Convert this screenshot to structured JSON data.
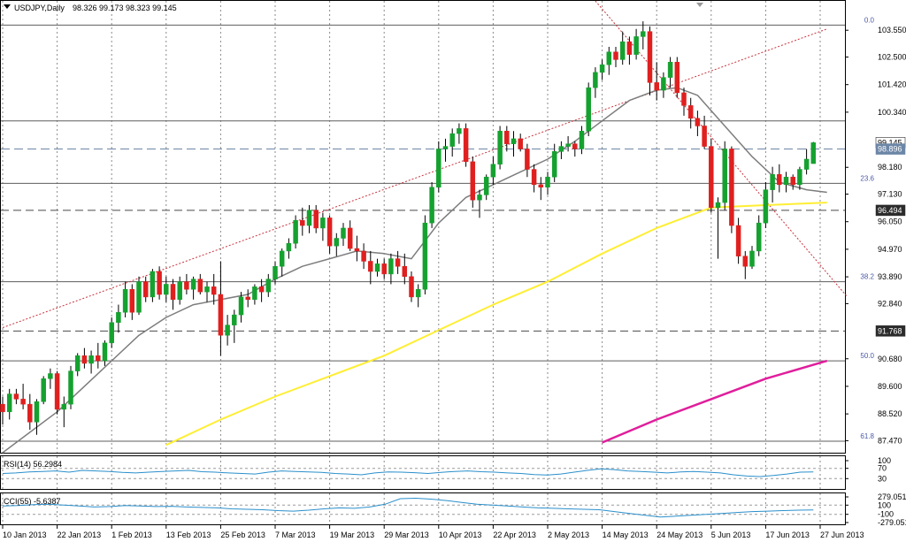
{
  "chart_data": {
    "type": "candlestick",
    "symbol_header": "USDJPY,Daily",
    "ohlc_header": "98.326 99.173 98.323 99.145",
    "price_axis_ticks": [
      "103.550",
      "102.500",
      "101.420",
      "100.340",
      "98.180",
      "97.130",
      "96.050",
      "94.970",
      "93.890",
      "92.840",
      "90.680",
      "89.600",
      "88.520",
      "87.470"
    ],
    "price_tags": [
      {
        "label": "99.145",
        "value": 99.145,
        "style": "current"
      },
      {
        "label": "98.896",
        "value": 98.896,
        "style": "blue"
      },
      {
        "label": "96.494",
        "value": 96.494,
        "style": "dark"
      },
      {
        "label": "91.768",
        "value": 91.768,
        "style": "dark"
      }
    ],
    "ylim": [
      87.0,
      104.7
    ],
    "date_labels": [
      {
        "label": "10 Jan 2013",
        "bar": 0
      },
      {
        "label": "22 Jan 2013",
        "bar": 8
      },
      {
        "label": "1 Feb 2013",
        "bar": 16
      },
      {
        "label": "13 Feb 2013",
        "bar": 24
      },
      {
        "label": "25 Feb 2013",
        "bar": 32
      },
      {
        "label": "7 Mar 2013",
        "bar": 40
      },
      {
        "label": "19 Mar 2013",
        "bar": 48
      },
      {
        "label": "29 Mar 2013",
        "bar": 56
      },
      {
        "label": "10 Apr 2013",
        "bar": 64
      },
      {
        "label": "22 Apr 2013",
        "bar": 72
      },
      {
        "label": "2 May 2013",
        "bar": 80
      },
      {
        "label": "14 May 2013",
        "bar": 88
      },
      {
        "label": "24 May 2013",
        "bar": 96
      },
      {
        "label": "5 Jun 2013",
        "bar": 104
      },
      {
        "label": "17 Jun 2013",
        "bar": 112
      },
      {
        "label": "27 Jun 2013",
        "bar": 120
      }
    ],
    "fib_levels": [
      {
        "label": "0.0",
        "value": 103.75
      },
      {
        "label": "23.6",
        "value": 97.55
      },
      {
        "label": "38.2",
        "value": 93.7
      },
      {
        "label": "50.0",
        "value": 90.6
      },
      {
        "label": "61.8",
        "value": 87.45
      }
    ],
    "horizontal_lines": [
      {
        "value": 103.75,
        "style": "solid"
      },
      {
        "value": 100.0,
        "style": "solid"
      },
      {
        "value": 98.896,
        "style": "dashed-blue"
      },
      {
        "value": 97.55,
        "style": "solid"
      },
      {
        "value": 96.494,
        "style": "dashed"
      },
      {
        "value": 93.7,
        "style": "solid"
      },
      {
        "value": 91.768,
        "style": "dashed"
      },
      {
        "value": 90.6,
        "style": "solid"
      },
      {
        "value": 87.45,
        "style": "solid"
      }
    ],
    "trendlines": [
      {
        "from": [
          0,
          91.9
        ],
        "to": [
          121,
          103.6
        ],
        "style": "dotted-red"
      },
      {
        "from": [
          87,
          104.7
        ],
        "to": [
          124,
          93.1
        ],
        "style": "dotted-red"
      }
    ],
    "candles": [
      [
        88.9,
        89.2,
        88.1,
        88.6
      ],
      [
        88.6,
        89.5,
        88.3,
        89.3
      ],
      [
        89.3,
        89.5,
        88.9,
        89.1
      ],
      [
        89.1,
        89.7,
        88.7,
        88.9
      ],
      [
        88.9,
        89.3,
        87.9,
        88.2
      ],
      [
        88.2,
        89.1,
        87.7,
        89.0
      ],
      [
        89.0,
        90.0,
        88.9,
        89.9
      ],
      [
        89.9,
        90.3,
        89.5,
        90.1
      ],
      [
        90.1,
        90.2,
        88.5,
        88.7
      ],
      [
        88.7,
        89.2,
        88.0,
        88.9
      ],
      [
        88.9,
        90.4,
        88.7,
        90.2
      ],
      [
        90.2,
        90.9,
        90.0,
        90.8
      ],
      [
        90.8,
        91.1,
        90.3,
        90.5
      ],
      [
        90.5,
        91.0,
        90.1,
        90.8
      ],
      [
        90.8,
        91.3,
        90.3,
        90.6
      ],
      [
        90.6,
        91.4,
        90.4,
        91.3
      ],
      [
        91.3,
        92.3,
        91.1,
        92.1
      ],
      [
        92.1,
        92.8,
        91.7,
        92.5
      ],
      [
        92.5,
        93.7,
        92.3,
        93.4
      ],
      [
        93.4,
        93.6,
        92.2,
        92.5
      ],
      [
        92.5,
        93.9,
        92.4,
        93.7
      ],
      [
        93.7,
        93.9,
        92.9,
        93.1
      ],
      [
        93.1,
        94.2,
        92.9,
        94.1
      ],
      [
        94.1,
        94.3,
        93.0,
        93.2
      ],
      [
        93.2,
        93.9,
        92.9,
        93.6
      ],
      [
        93.6,
        93.8,
        92.6,
        93.0
      ],
      [
        93.0,
        93.9,
        92.8,
        93.7
      ],
      [
        93.7,
        94.0,
        93.2,
        93.4
      ],
      [
        93.4,
        93.9,
        93.0,
        93.8
      ],
      [
        93.8,
        94.0,
        93.2,
        93.3
      ],
      [
        93.3,
        93.7,
        92.9,
        93.5
      ],
      [
        93.5,
        94.0,
        92.8,
        93.2
      ],
      [
        93.2,
        94.5,
        90.8,
        91.6
      ],
      [
        91.6,
        92.4,
        91.2,
        92.0
      ],
      [
        92.0,
        92.6,
        91.3,
        92.4
      ],
      [
        92.4,
        93.3,
        92.1,
        93.1
      ],
      [
        93.1,
        93.4,
        92.7,
        93.0
      ],
      [
        93.0,
        93.6,
        92.8,
        93.5
      ],
      [
        93.5,
        93.8,
        92.9,
        93.3
      ],
      [
        93.3,
        94.0,
        93.1,
        93.8
      ],
      [
        93.8,
        94.5,
        93.6,
        94.3
      ],
      [
        94.3,
        95.0,
        93.9,
        94.9
      ],
      [
        94.9,
        95.4,
        94.6,
        95.2
      ],
      [
        95.2,
        96.3,
        95.0,
        96.1
      ],
      [
        96.1,
        96.6,
        95.5,
        95.9
      ],
      [
        95.9,
        96.7,
        95.6,
        96.5
      ],
      [
        96.5,
        96.7,
        95.6,
        95.8
      ],
      [
        95.8,
        96.4,
        95.3,
        96.2
      ],
      [
        96.2,
        96.3,
        94.8,
        95.1
      ],
      [
        95.1,
        95.6,
        94.7,
        95.4
      ],
      [
        95.4,
        96.0,
        95.1,
        95.8
      ],
      [
        95.8,
        96.1,
        94.9,
        95.0
      ],
      [
        95.0,
        95.5,
        94.5,
        94.9
      ],
      [
        94.9,
        95.2,
        94.2,
        94.5
      ],
      [
        94.5,
        94.9,
        93.6,
        94.1
      ],
      [
        94.1,
        94.6,
        93.9,
        94.4
      ],
      [
        94.4,
        94.6,
        93.8,
        94.0
      ],
      [
        94.0,
        94.8,
        93.6,
        94.6
      ],
      [
        94.6,
        94.9,
        94.0,
        94.3
      ],
      [
        94.3,
        94.8,
        93.6,
        93.9
      ],
      [
        93.9,
        94.1,
        92.9,
        93.1
      ],
      [
        93.1,
        93.6,
        92.7,
        93.4
      ],
      [
        93.4,
        96.3,
        93.2,
        96.0
      ],
      [
        96.0,
        97.6,
        95.8,
        97.4
      ],
      [
        97.4,
        99.2,
        97.2,
        98.9
      ],
      [
        98.9,
        99.3,
        98.4,
        99.0
      ],
      [
        99.0,
        99.7,
        98.6,
        99.5
      ],
      [
        99.5,
        99.9,
        99.1,
        99.7
      ],
      [
        99.7,
        99.9,
        98.2,
        98.4
      ],
      [
        98.4,
        98.6,
        96.6,
        96.9
      ],
      [
        96.9,
        97.3,
        96.2,
        97.1
      ],
      [
        97.1,
        97.9,
        96.9,
        97.8
      ],
      [
        97.8,
        98.6,
        97.5,
        98.3
      ],
      [
        98.3,
        99.8,
        98.1,
        99.6
      ],
      [
        99.6,
        99.8,
        98.8,
        99.1
      ],
      [
        99.1,
        99.6,
        98.6,
        99.3
      ],
      [
        99.3,
        99.5,
        98.8,
        98.9
      ],
      [
        98.9,
        99.1,
        97.8,
        98.1
      ],
      [
        98.1,
        98.3,
        97.2,
        97.5
      ],
      [
        97.5,
        97.8,
        96.9,
        97.4
      ],
      [
        97.4,
        98.0,
        97.1,
        97.8
      ],
      [
        97.8,
        99.1,
        97.6,
        98.8
      ],
      [
        98.8,
        99.2,
        98.5,
        99.0
      ],
      [
        99.0,
        99.4,
        98.8,
        99.1
      ],
      [
        99.1,
        99.2,
        98.6,
        98.9
      ],
      [
        98.9,
        99.8,
        98.7,
        99.6
      ],
      [
        99.6,
        101.5,
        99.4,
        101.3
      ],
      [
        101.3,
        102.1,
        100.9,
        101.9
      ],
      [
        101.9,
        102.4,
        101.6,
        102.2
      ],
      [
        102.2,
        102.9,
        101.8,
        102.7
      ],
      [
        102.7,
        102.9,
        102.1,
        102.4
      ],
      [
        102.4,
        103.5,
        102.2,
        103.1
      ],
      [
        103.1,
        103.3,
        102.2,
        102.6
      ],
      [
        102.6,
        103.6,
        102.4,
        103.3
      ],
      [
        103.3,
        103.9,
        102.8,
        103.5
      ],
      [
        103.5,
        103.7,
        101.0,
        101.5
      ],
      [
        101.5,
        102.3,
        100.8,
        101.2
      ],
      [
        101.2,
        101.9,
        100.9,
        101.7
      ],
      [
        101.7,
        102.5,
        101.3,
        102.3
      ],
      [
        102.3,
        102.5,
        100.9,
        101.1
      ],
      [
        101.1,
        101.3,
        100.2,
        100.6
      ],
      [
        100.6,
        100.9,
        99.7,
        100.1
      ],
      [
        100.1,
        100.4,
        99.4,
        99.8
      ],
      [
        99.8,
        100.2,
        98.9,
        99.0
      ],
      [
        99.0,
        99.3,
        96.4,
        96.6
      ],
      [
        96.6,
        97.0,
        94.6,
        96.8
      ],
      [
        96.8,
        99.2,
        96.5,
        98.9
      ],
      [
        98.9,
        99.0,
        95.6,
        95.9
      ],
      [
        95.9,
        96.2,
        94.4,
        94.7
      ],
      [
        94.7,
        94.9,
        93.8,
        94.3
      ],
      [
        94.3,
        95.1,
        94.2,
        94.9
      ],
      [
        94.9,
        96.3,
        94.7,
        96.0
      ],
      [
        96.0,
        97.6,
        95.8,
        97.3
      ],
      [
        97.3,
        98.2,
        96.8,
        97.9
      ],
      [
        97.9,
        98.3,
        97.2,
        97.5
      ],
      [
        97.5,
        98.0,
        97.2,
        97.8
      ],
      [
        97.8,
        97.9,
        97.3,
        97.5
      ],
      [
        97.5,
        98.2,
        97.3,
        98.1
      ],
      [
        98.1,
        98.9,
        97.9,
        98.5
      ],
      [
        98.326,
        99.173,
        98.323,
        99.145
      ]
    ],
    "ma_short": [
      [
        0,
        87.0
      ],
      [
        4,
        87.8
      ],
      [
        8,
        88.6
      ],
      [
        12,
        89.6
      ],
      [
        16,
        90.6
      ],
      [
        20,
        91.6
      ],
      [
        24,
        92.3
      ],
      [
        28,
        92.8
      ],
      [
        32,
        93.0
      ],
      [
        36,
        93.2
      ],
      [
        40,
        93.8
      ],
      [
        44,
        94.3
      ],
      [
        48,
        94.6
      ],
      [
        52,
        94.9
      ],
      [
        56,
        94.8
      ],
      [
        60,
        94.6
      ],
      [
        64,
        96.0
      ],
      [
        68,
        97.0
      ],
      [
        72,
        97.5
      ],
      [
        76,
        98.0
      ],
      [
        80,
        98.5
      ],
      [
        84,
        99.2
      ],
      [
        88,
        100.0
      ],
      [
        92,
        100.8
      ],
      [
        96,
        101.2
      ],
      [
        99,
        101.3
      ],
      [
        102,
        101.0
      ],
      [
        106,
        99.8
      ],
      [
        110,
        98.6
      ],
      [
        114,
        97.6
      ],
      [
        118,
        97.3
      ],
      [
        121,
        97.2
      ]
    ],
    "ma_mid": [
      [
        24,
        87.3
      ],
      [
        32,
        88.3
      ],
      [
        40,
        89.2
      ],
      [
        48,
        90.0
      ],
      [
        56,
        90.8
      ],
      [
        64,
        91.8
      ],
      [
        72,
        92.8
      ],
      [
        80,
        93.7
      ],
      [
        88,
        94.8
      ],
      [
        96,
        95.8
      ],
      [
        104,
        96.6
      ],
      [
        112,
        96.7
      ],
      [
        121,
        96.8
      ]
    ],
    "ma_long": [
      [
        88,
        87.4
      ],
      [
        96,
        88.3
      ],
      [
        104,
        89.1
      ],
      [
        112,
        89.9
      ],
      [
        121,
        90.6
      ]
    ],
    "rsi": {
      "label": "RSI(14) 56.2984",
      "ticks": [
        "100",
        "70",
        "30"
      ],
      "levels": [
        100,
        70,
        30
      ],
      "values": [
        50,
        52,
        56,
        58,
        60,
        55,
        62,
        60,
        58,
        54,
        52,
        55,
        58,
        60,
        62,
        57,
        55,
        52,
        50,
        48,
        55,
        60,
        58,
        56,
        54,
        50,
        48,
        45,
        52,
        56,
        55,
        53,
        50,
        54,
        58,
        60,
        57,
        55,
        52,
        50,
        46,
        44,
        48,
        55,
        62,
        68,
        65,
        60,
        58,
        55,
        52,
        56,
        58,
        55,
        52,
        45,
        40,
        38,
        42,
        48,
        55,
        56.3
      ]
    },
    "cci": {
      "label": "CCI(55) -5.6387",
      "ticks": [
        "279.051",
        "100",
        "-100",
        "-279.051"
      ],
      "levels": [
        279.051,
        100,
        -100,
        -279.051
      ],
      "values": [
        80,
        90,
        110,
        120,
        100,
        80,
        60,
        70,
        90,
        80,
        70,
        75,
        60,
        50,
        40,
        20,
        10,
        0,
        -20,
        -30,
        -10,
        20,
        40,
        30,
        60,
        120,
        240,
        250,
        230,
        200,
        160,
        120,
        100,
        80,
        60,
        40,
        30,
        20,
        10,
        0,
        -40,
        -80,
        -120,
        -160,
        -140,
        -120,
        -100,
        -80,
        -60,
        -40,
        -30,
        -20,
        -10,
        -5.6
      ]
    },
    "colors": {
      "bull": "#15a12f",
      "bear": "#e01f1f",
      "ma_short": "#7d7d7d",
      "ma_mid": "#ffee33",
      "ma_long": "#e01e9c",
      "trendline": "#c8323c",
      "blue_line": "#6c86a6",
      "indicator_line": "#2a8fcb"
    }
  }
}
